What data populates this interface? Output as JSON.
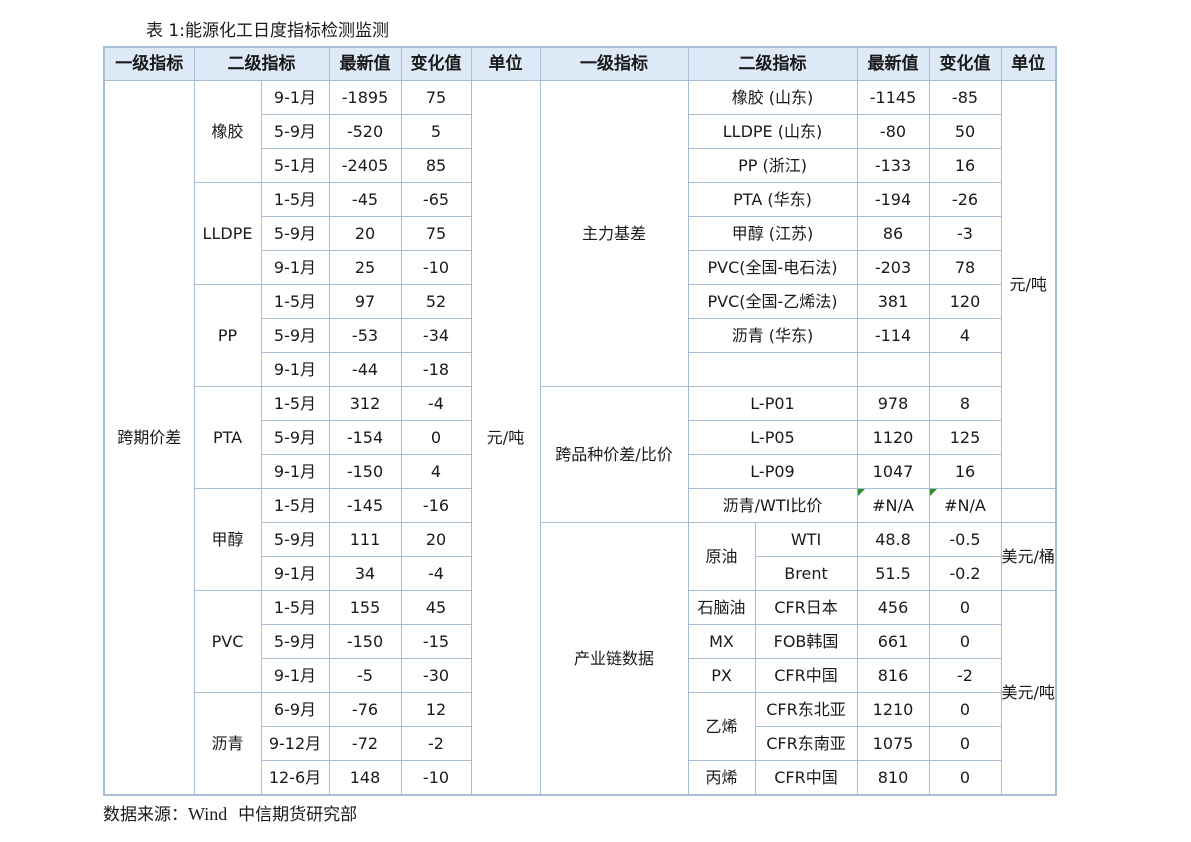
{
  "caption": "表 1:能源化工日度指标检测监测",
  "headers": {
    "left": [
      "一级指标",
      "二级指标",
      "最新值",
      "变化值",
      "单位"
    ],
    "right": [
      "一级指标",
      "二级指标",
      "最新值",
      "变化值",
      "单位"
    ]
  },
  "left": {
    "category": "跨期价差",
    "unit": "元/吨",
    "groups": [
      {
        "name": "橡胶",
        "rows": [
          [
            "9-1月",
            "-1895",
            "75"
          ],
          [
            "5-9月",
            "-520",
            "5"
          ],
          [
            "5-1月",
            "-2405",
            "85"
          ]
        ]
      },
      {
        "name": "LLDPE",
        "rows": [
          [
            "1-5月",
            "-45",
            "-65"
          ],
          [
            "5-9月",
            "20",
            "75"
          ],
          [
            "9-1月",
            "25",
            "-10"
          ]
        ]
      },
      {
        "name": "PP",
        "rows": [
          [
            "1-5月",
            "97",
            "52"
          ],
          [
            "5-9月",
            "-53",
            "-34"
          ],
          [
            "9-1月",
            "-44",
            "-18"
          ]
        ]
      },
      {
        "name": "PTA",
        "rows": [
          [
            "1-5月",
            "312",
            "-4"
          ],
          [
            "5-9月",
            "-154",
            "0"
          ],
          [
            "9-1月",
            "-150",
            "4"
          ]
        ]
      },
      {
        "name": "甲醇",
        "rows": [
          [
            "1-5月",
            "-145",
            "-16"
          ],
          [
            "5-9月",
            "111",
            "20"
          ],
          [
            "9-1月",
            "34",
            "-4"
          ]
        ]
      },
      {
        "name": "PVC",
        "rows": [
          [
            "1-5月",
            "155",
            "45"
          ],
          [
            "5-9月",
            "-150",
            "-15"
          ],
          [
            "9-1月",
            "-5",
            "-30"
          ]
        ]
      },
      {
        "name": "沥青",
        "rows": [
          [
            "6-9月",
            "-76",
            "12"
          ],
          [
            "9-12月",
            "-72",
            "-2"
          ],
          [
            "12-6月",
            "148",
            "-10"
          ]
        ]
      }
    ]
  },
  "right": {
    "basis": {
      "category": "主力基差",
      "unit": "元/吨",
      "rows": [
        [
          "橡胶 (山东)",
          "-1145",
          "-85"
        ],
        [
          "LLDPE (山东)",
          "-80",
          "50"
        ],
        [
          "PP (浙江)",
          "-133",
          "16"
        ],
        [
          "PTA (华东)",
          "-194",
          "-26"
        ],
        [
          "甲醇 (江苏)",
          "86",
          "-3"
        ],
        [
          "PVC(全国-电石法)",
          "-203",
          "78"
        ],
        [
          "PVC(全国-乙烯法)",
          "381",
          "120"
        ],
        [
          "沥青 (华东)",
          "-114",
          "4"
        ],
        [
          "",
          "",
          ""
        ]
      ]
    },
    "spread": {
      "category": "跨品种价差/比价",
      "rows": [
        [
          "L-P01",
          "978",
          "8"
        ],
        [
          "L-P05",
          "1120",
          "125"
        ],
        [
          "L-P09",
          "1047",
          "16"
        ],
        [
          "沥青/WTI比价",
          "#N/A",
          "#N/A"
        ]
      ]
    },
    "chain": {
      "category": "产业链数据",
      "crude": {
        "name": "原油",
        "unit": "美元/桶",
        "rows": [
          [
            "WTI",
            "48.8",
            "-0.5"
          ],
          [
            "Brent",
            "51.5",
            "-0.2"
          ]
        ]
      },
      "unit": "美元/吨",
      "naphtha": {
        "name": "石脑油",
        "sub": "CFR日本",
        "value": "456",
        "change": "0"
      },
      "mx": {
        "name": "MX",
        "sub": "FOB韩国",
        "value": "661",
        "change": "0"
      },
      "px": {
        "name": "PX",
        "sub": "CFR中国",
        "value": "816",
        "change": "-2"
      },
      "ethylene": {
        "name": "乙烯",
        "rows": [
          [
            "CFR东北亚",
            "1210",
            "0"
          ],
          [
            "CFR东南亚",
            "1075",
            "0"
          ]
        ]
      },
      "propylene": {
        "name": "丙烯",
        "sub": "CFR中国",
        "value": "810",
        "change": "0"
      }
    }
  },
  "source": {
    "label": "数据来源：",
    "provider": "Wind",
    "org": "中信期货研究部"
  }
}
